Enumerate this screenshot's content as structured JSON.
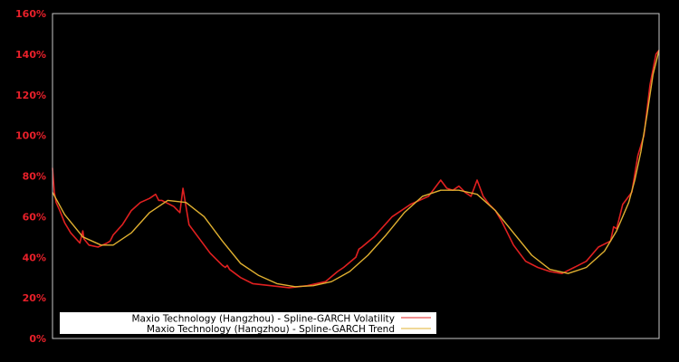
{
  "chart_data": {
    "type": "line",
    "title": "",
    "xlabel": "",
    "ylabel": "",
    "ylim": [
      0,
      160
    ],
    "yticks": [
      "0%",
      "20%",
      "40%",
      "60%",
      "80%",
      "100%",
      "120%",
      "140%",
      "160%"
    ],
    "ytick_values": [
      0,
      20,
      40,
      60,
      80,
      100,
      120,
      140,
      160
    ],
    "grid": false,
    "legend_position": "lower left",
    "colors": {
      "background": "#000000",
      "axis": "#c8c8c8",
      "tick_label": "#e8202a",
      "volatility": "#e02020",
      "trend": "#e0b030"
    },
    "series": [
      {
        "name": "Maxio Technology (Hangzhou) - Spline-GARCH Volatility",
        "color": "#e02020",
        "x_frac": [
          0,
          0.003,
          0.006,
          0.012,
          0.02,
          0.03,
          0.045,
          0.05,
          0.052,
          0.06,
          0.075,
          0.09,
          0.095,
          0.1,
          0.115,
          0.13,
          0.145,
          0.16,
          0.17,
          0.175,
          0.18,
          0.2,
          0.21,
          0.215,
          0.225,
          0.24,
          0.26,
          0.28,
          0.285,
          0.288,
          0.292,
          0.31,
          0.33,
          0.36,
          0.39,
          0.42,
          0.45,
          0.47,
          0.48,
          0.5,
          0.505,
          0.51,
          0.53,
          0.56,
          0.59,
          0.62,
          0.64,
          0.65,
          0.66,
          0.67,
          0.68,
          0.69,
          0.7,
          0.71,
          0.72,
          0.73,
          0.74,
          0.75,
          0.76,
          0.77,
          0.78,
          0.8,
          0.82,
          0.84,
          0.86,
          0.88,
          0.9,
          0.92,
          0.925,
          0.93,
          0.94,
          0.955,
          0.965,
          0.975,
          0.985,
          0.995,
          1.0
        ],
        "values": [
          84,
          72,
          67,
          63,
          57,
          52,
          47,
          53,
          49,
          46,
          45,
          47,
          48,
          51,
          56,
          63,
          67,
          69,
          71,
          68,
          68,
          65,
          62,
          74,
          56,
          50,
          42,
          36,
          35,
          36,
          34,
          30,
          27,
          26,
          25,
          26,
          28,
          33,
          35,
          40,
          44,
          45,
          50,
          60,
          66,
          70,
          78,
          74,
          73,
          75,
          72,
          70,
          78,
          70,
          66,
          63,
          58,
          52,
          46,
          42,
          38,
          35,
          33,
          32,
          35,
          38,
          45,
          48,
          55,
          54,
          66,
          72,
          90,
          100,
          125,
          140,
          142
        ]
      },
      {
        "name": "Maxio Technology (Hangzhou) - Spline-GARCH Trend",
        "color": "#e0b030",
        "x_frac": [
          0,
          0.02,
          0.05,
          0.08,
          0.1,
          0.13,
          0.16,
          0.19,
          0.22,
          0.25,
          0.28,
          0.31,
          0.34,
          0.37,
          0.4,
          0.43,
          0.46,
          0.49,
          0.52,
          0.55,
          0.58,
          0.61,
          0.64,
          0.67,
          0.7,
          0.73,
          0.76,
          0.79,
          0.82,
          0.85,
          0.88,
          0.91,
          0.93,
          0.95,
          0.96,
          0.97,
          0.98,
          0.99,
          1.0
        ],
        "values": [
          72,
          61,
          50,
          46,
          46,
          52,
          62,
          68,
          67,
          60,
          48,
          37,
          31,
          27,
          25.5,
          26,
          28,
          33,
          41,
          51,
          62,
          70,
          73,
          73,
          71,
          63,
          52,
          41,
          34,
          32,
          35,
          43,
          53,
          67,
          78,
          92,
          110,
          130,
          142
        ]
      }
    ]
  },
  "legend": {
    "items": [
      {
        "label": "Maxio Technology (Hangzhou) - Spline-GARCH Volatility",
        "color": "#e02020"
      },
      {
        "label": "Maxio Technology (Hangzhou) - Spline-GARCH Trend",
        "color": "#e0b030"
      }
    ]
  }
}
